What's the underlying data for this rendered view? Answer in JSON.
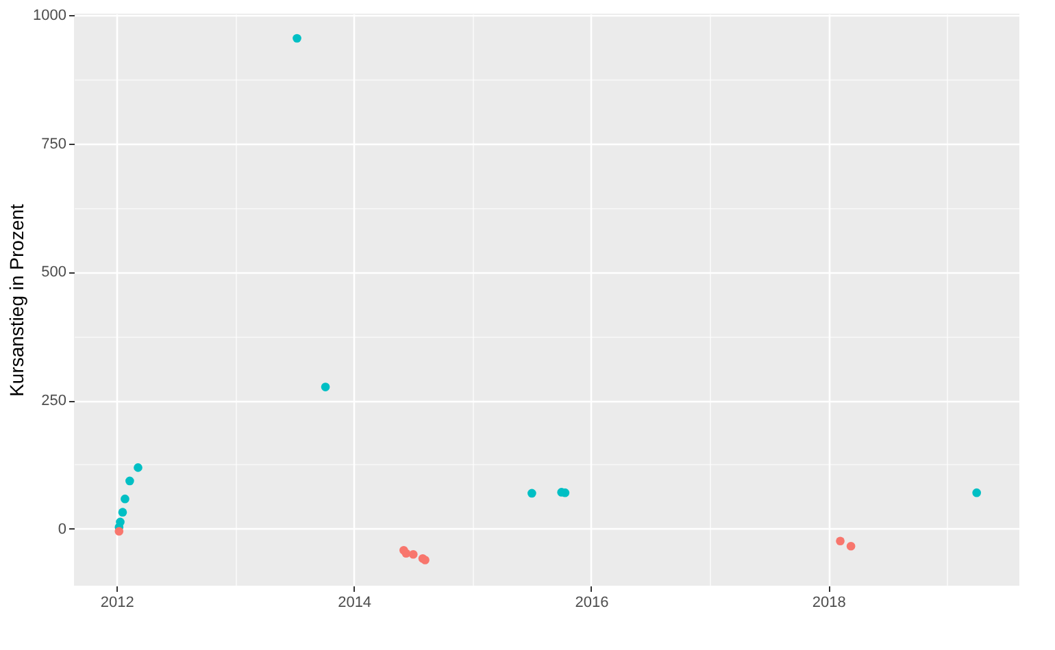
{
  "chart_data": {
    "type": "scatter",
    "ylabel": "Kursanstieg in Prozent",
    "xlim": [
      2011.64,
      2019.61
    ],
    "ylim": [
      -111,
      1003
    ],
    "xticks": [
      2012,
      {
        "value": 2013,
        "label": null
      },
      2014,
      {
        "value": 2015,
        "label": null
      },
      2016,
      {
        "value": 2017,
        "label": null
      },
      2018,
      {
        "value": 2019,
        "label": null
      }
    ],
    "yticks": [
      0,
      {
        "value": 125,
        "label": null
      },
      250,
      {
        "value": 375,
        "label": null
      },
      500,
      {
        "value": 625,
        "label": null
      },
      750,
      {
        "value": 875,
        "label": null
      },
      1000
    ],
    "grid": true,
    "legend": false,
    "marker": "circle",
    "series": [
      {
        "color": "#00bfc4",
        "x": [
          2012.02,
          2012.03,
          2012.05,
          2012.07,
          2012.11,
          2012.18,
          2013.52,
          2013.76,
          2015.5,
          2015.75,
          2015.78,
          2019.25
        ],
        "values": [
          3,
          13,
          32,
          58,
          93,
          119,
          955,
          276,
          69,
          71,
          70,
          70
        ]
      },
      {
        "color": "#f8766d",
        "x": [
          2012.02,
          2014.42,
          2014.44,
          2014.5,
          2014.58,
          2014.6,
          2018.1,
          2018.19
        ],
        "values": [
          -5,
          -42,
          -48,
          -50,
          -58,
          -61,
          -24,
          -34
        ]
      }
    ]
  }
}
